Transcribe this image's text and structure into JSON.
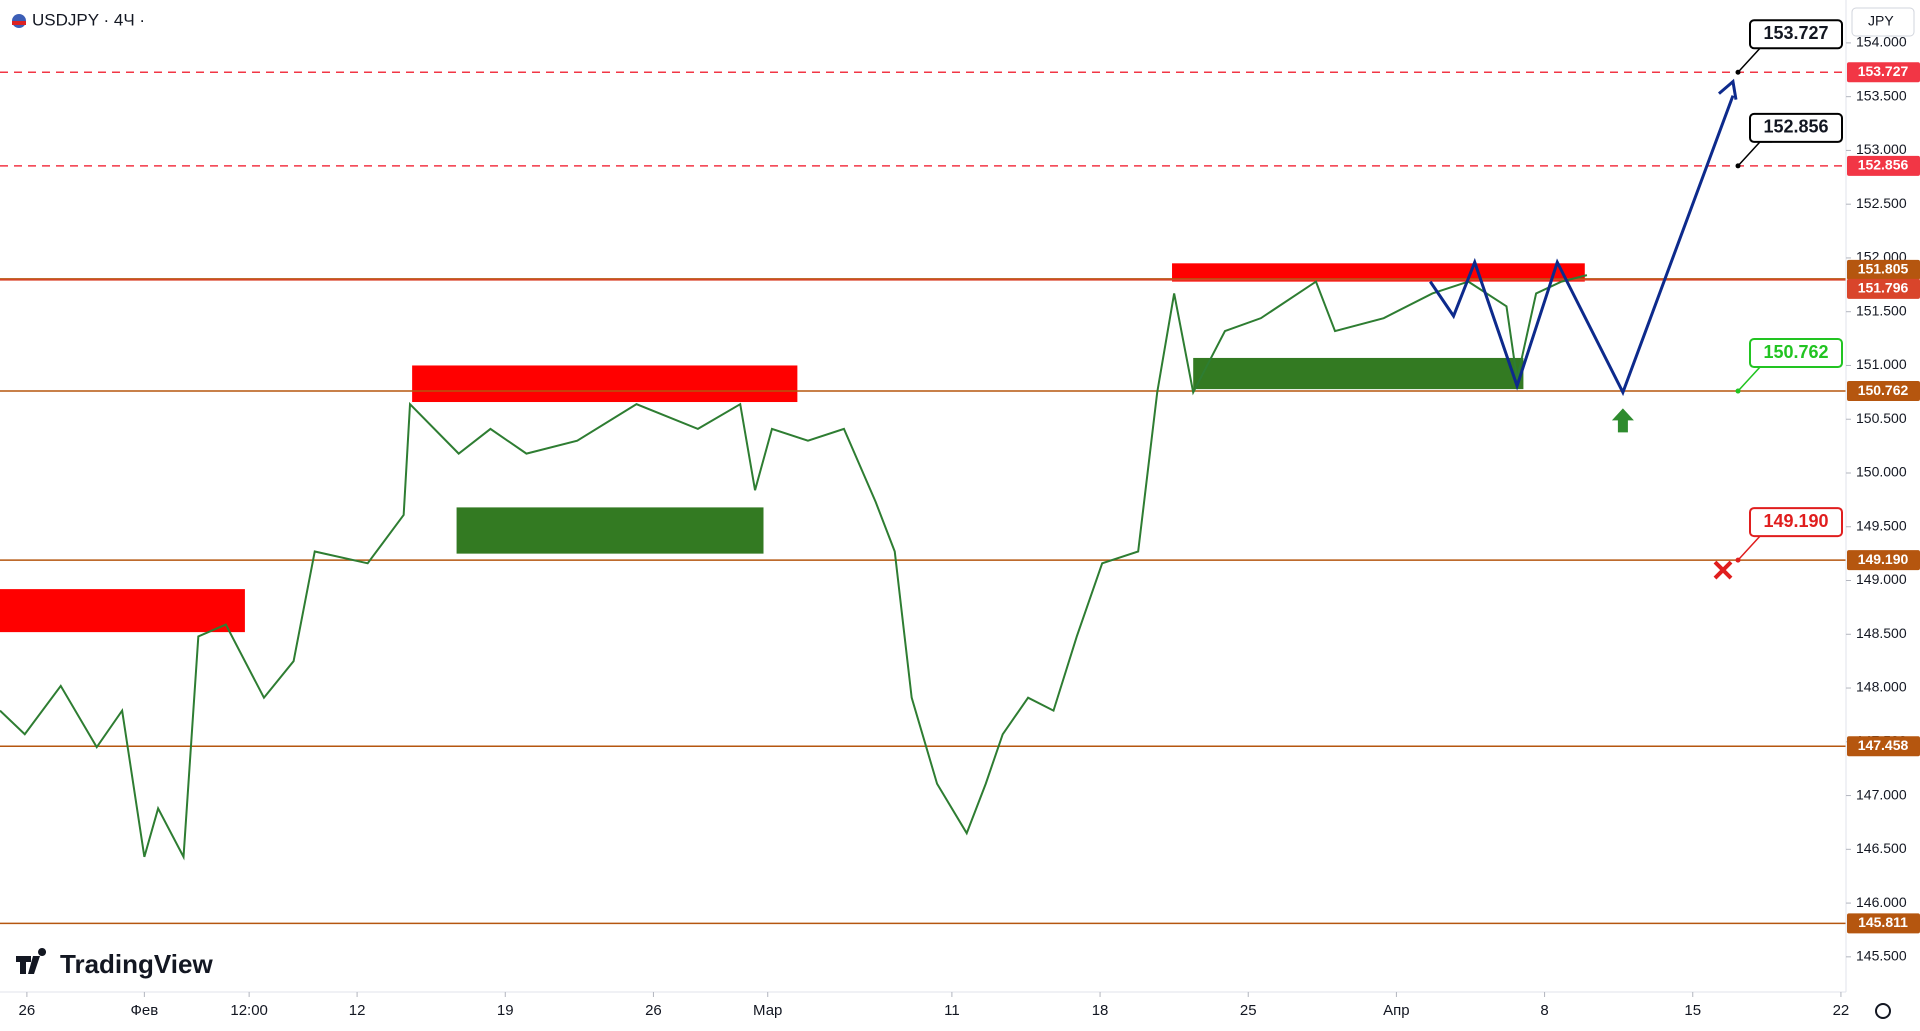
{
  "chart_data": {
    "type": "line",
    "title": "USDJPY · 4Ч ·",
    "currency": "JPY",
    "watermark": "TradingView",
    "xlim": [
      -1.27,
      85.94
    ],
    "ylim": [
      145.173,
      154.399
    ],
    "xticks": [
      {
        "value": 0,
        "label": "26"
      },
      {
        "value": 5.55,
        "label": "Фев"
      },
      {
        "value": 10.5,
        "label": "12:00"
      },
      {
        "value": 15.6,
        "label": "12"
      },
      {
        "value": 22.6,
        "label": "19"
      },
      {
        "value": 29.6,
        "label": "26"
      },
      {
        "value": 35,
        "label": "Мар"
      },
      {
        "value": 43.7,
        "label": "11"
      },
      {
        "value": 50.7,
        "label": "18"
      },
      {
        "value": 57.7,
        "label": "25"
      },
      {
        "value": 64.7,
        "label": "Апр"
      },
      {
        "value": 71.7,
        "label": "8"
      },
      {
        "value": 78.7,
        "label": "15"
      },
      {
        "value": 85.7,
        "label": "22"
      }
    ],
    "yticks": [
      {
        "value": 145.5,
        "label": "145.500"
      },
      {
        "value": 146,
        "label": "146.000"
      },
      {
        "value": 146.5,
        "label": "146.500"
      },
      {
        "value": 147,
        "label": "147.000"
      },
      {
        "value": 147.5,
        "label": "147.500"
      },
      {
        "value": 148,
        "label": "148.000"
      },
      {
        "value": 148.5,
        "label": "148.500"
      },
      {
        "value": 149,
        "label": "149.000"
      },
      {
        "value": 149.5,
        "label": "149.500"
      },
      {
        "value": 150,
        "label": "150.000"
      },
      {
        "value": 150.5,
        "label": "150.500"
      },
      {
        "value": 151,
        "label": "151.000"
      },
      {
        "value": 151.5,
        "label": "151.500"
      },
      {
        "value": 152,
        "label": "152.000"
      },
      {
        "value": 152.5,
        "label": "152.500"
      },
      {
        "value": 153,
        "label": "153.000"
      },
      {
        "value": 153.5,
        "label": "153.500"
      },
      {
        "value": 154,
        "label": "154.000"
      }
    ],
    "series": [
      {
        "color": "#2e7d32",
        "x": [
          -1.27,
          -0.1,
          1.6,
          3.3,
          4.5,
          5.55,
          6.2,
          7.4,
          8.1,
          9.4,
          11.2,
          12.6,
          13.6,
          16.1,
          17.8,
          18.1,
          20.4,
          21.9,
          23.6,
          26.0,
          28.8,
          31.7,
          33.7,
          34.4,
          35.2,
          36.9,
          38.6,
          40.1,
          41.0,
          41.8,
          43.0,
          44.4,
          45.3,
          46.1,
          47.3,
          48.5,
          49.6,
          50.8,
          52.5,
          53.4,
          54.2,
          55.1,
          56.6,
          58.3,
          60.9,
          61.8,
          64.1,
          66.4,
          68.1,
          69.9,
          70.4,
          71.3,
          72.5,
          73.7
        ],
        "values": [
          147.79,
          147.57,
          148.02,
          147.45,
          147.79,
          146.43,
          146.88,
          146.43,
          148.48,
          148.59,
          147.91,
          148.25,
          149.27,
          149.16,
          149.61,
          150.64,
          150.18,
          150.41,
          150.18,
          150.3,
          150.64,
          150.41,
          150.64,
          149.84,
          150.41,
          150.3,
          150.41,
          149.73,
          149.27,
          147.91,
          147.11,
          146.65,
          147.11,
          147.57,
          147.91,
          147.79,
          148.48,
          149.16,
          149.27,
          150.75,
          151.67,
          150.75,
          151.32,
          151.44,
          151.78,
          151.32,
          151.44,
          151.67,
          151.78,
          151.55,
          150.87,
          151.67,
          151.78,
          151.84
        ]
      }
    ],
    "levels": [
      {
        "value": 153.727,
        "label": "153.727",
        "color": "#f23645",
        "dashed": true,
        "callout_color": "#000000"
      },
      {
        "value": 152.856,
        "label": "152.856",
        "color": "#f23645",
        "dashed": true,
        "callout_color": "#000000"
      },
      {
        "value": 151.805,
        "label": "151.805",
        "color": "#b5560f",
        "dashed": false
      },
      {
        "value": 151.796,
        "label": "151.796",
        "color": "#d9452b",
        "dashed": false
      },
      {
        "value": 150.762,
        "label": "150.762",
        "color": "#b5560f",
        "dashed": false,
        "callout_color": "#22c422"
      },
      {
        "value": 149.19,
        "label": "149.190",
        "color": "#b5560f",
        "dashed": false,
        "callout_color": "#e01e1e"
      },
      {
        "value": 147.458,
        "label": "147.458",
        "color": "#b5560f",
        "dashed": false
      },
      {
        "value": 145.811,
        "label": "145.811",
        "color": "#b5560f",
        "dashed": false
      }
    ],
    "zones": [
      {
        "x": [
          -1.27,
          10.3
        ],
        "y": [
          148.52,
          148.92
        ],
        "color": "#ff0000"
      },
      {
        "x": [
          18.2,
          36.4
        ],
        "y": [
          150.66,
          151.0
        ],
        "color": "#ff0000"
      },
      {
        "x": [
          54.1,
          73.6
        ],
        "y": [
          151.78,
          151.95
        ],
        "color": "#ff0000"
      },
      {
        "x": [
          20.3,
          34.8
        ],
        "y": [
          149.25,
          149.68
        ],
        "color": "#337a22"
      },
      {
        "x": [
          55.1,
          70.7
        ],
        "y": [
          150.78,
          151.07
        ],
        "color": "#337a22"
      }
    ],
    "projection": {
      "color": "#0d2a8c",
      "x": [
        66.3,
        67.4,
        68.4,
        70.4,
        72.3,
        75.4,
        80.6
      ],
      "values": [
        151.78,
        151.46,
        151.96,
        150.81,
        151.96,
        150.75,
        153.51
      ]
    }
  }
}
